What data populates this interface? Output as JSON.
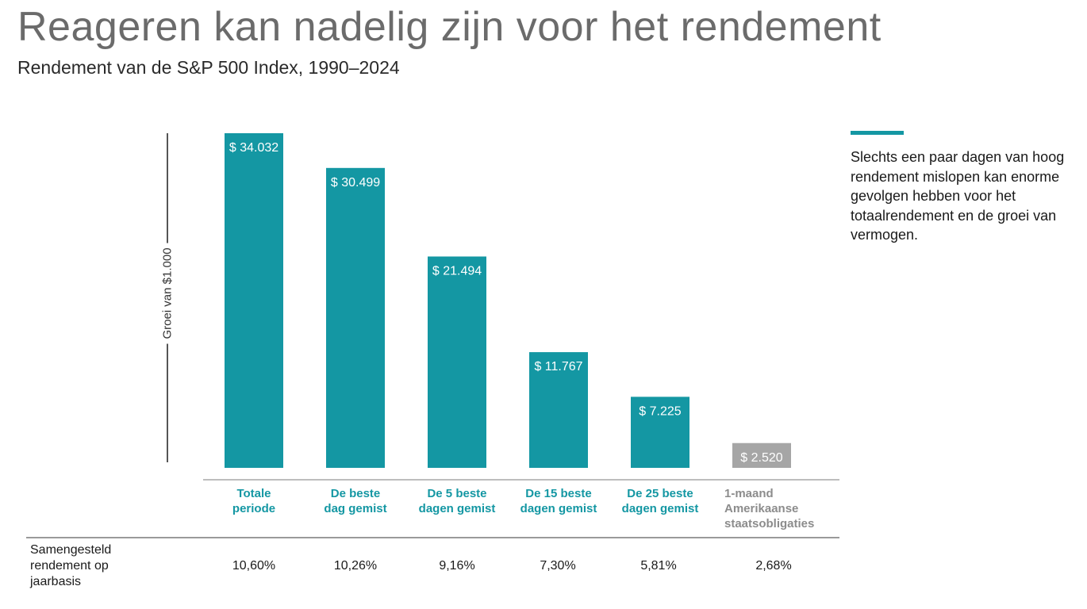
{
  "title": "Reageren kan nadelig zijn voor het rendement",
  "subtitle": "Rendement van de S&P 500 Index, 1990–2024",
  "callout": "Slechts een paar dagen van hoog rendement mislopen kan enorme gevolgen hebben voor het totaalrendement en de groei van vermogen.",
  "table": {
    "row_label": "Samengesteld rendement op jaarbasis",
    "rates": [
      "10,60%",
      "10,26%",
      "9,16%",
      "7,30%",
      "5,81%",
      "2,68%"
    ]
  },
  "chart_data": {
    "type": "bar",
    "ylabel": "Groei van $1.000",
    "categories": [
      "Totale periode",
      "De beste dag gemist",
      "De 5 beste dagen gemist",
      "De 15 beste dagen gemist",
      "De 25 beste dagen gemist",
      "1-maand Amerikaanse staatsobligaties"
    ],
    "category_lines": [
      [
        "Totale",
        "periode"
      ],
      [
        "De beste",
        "dag gemist"
      ],
      [
        "De 5 beste",
        "dagen gemist"
      ],
      [
        "De 15 beste",
        "dagen gemist"
      ],
      [
        "De 25 beste",
        "dagen gemist"
      ],
      [
        "1-maand",
        "Amerikaanse",
        "staatsobligaties"
      ]
    ],
    "values": [
      34032,
      30499,
      21494,
      11767,
      7225,
      2520
    ],
    "data_labels": [
      "$ 34.032",
      "$ 30.499",
      "$ 21.494",
      "$ 11.767",
      "$ 7.225",
      "$ 2.520"
    ],
    "ylim": [
      0,
      34032
    ],
    "grid": false,
    "colors": {
      "equity": "#1497a3",
      "bond": "#a6a6a6",
      "category_text": "#1497a3",
      "bond_category_text": "#8c8c8c"
    }
  }
}
